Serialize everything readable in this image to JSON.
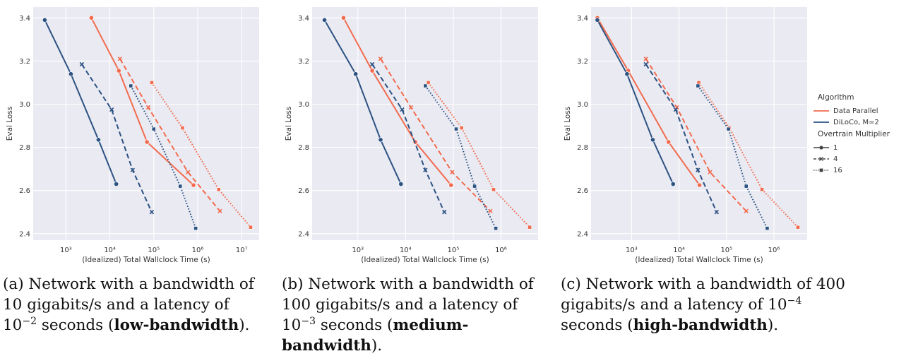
{
  "legend": {
    "title_algorithm": "Algorithm",
    "title_overtrain": "Overtrain Multiplier",
    "algorithms": [
      {
        "name": "Data Parallel",
        "color": "#f26b4e"
      },
      {
        "name": "DiLoCo, M=2",
        "color": "#2c5282"
      }
    ],
    "overtrain": [
      {
        "label": "1",
        "dash": "solid"
      },
      {
        "label": "4",
        "dash": "dashed"
      },
      {
        "label": "16",
        "dash": "dotted"
      }
    ]
  },
  "captions": [
    {
      "id": "a",
      "prefix": "(a) Network with a bandwidth of 10 gigabits/s and a latency of 10",
      "exp": "−2",
      "mid": " seconds (",
      "bold": "low-bandwidth",
      "suffix": ")."
    },
    {
      "id": "b",
      "prefix": "(b) Network with a bandwidth of 100 gigabits/s and a latency of 10",
      "exp": "−3",
      "mid": " seconds (",
      "bold": "medium-bandwidth",
      "suffix": ")."
    },
    {
      "id": "c",
      "prefix": "(c) Network with a bandwidth of 400 gigabits/s and a latency of 10",
      "exp": "−4",
      "mid": " seconds (",
      "bold": "high-bandwidth",
      "suffix": ")."
    }
  ],
  "chart_data": [
    {
      "type": "line",
      "xlabel": "(Idealized) Total Wallclock Time (s)",
      "ylabel": "Eval Loss",
      "xscale": "log",
      "xlim": [
        180,
        25000000
      ],
      "ylim": [
        2.37,
        3.45
      ],
      "xticks": [
        {
          "v": 1000,
          "label": "10^3"
        },
        {
          "v": 10000,
          "label": "10^4"
        },
        {
          "v": 100000,
          "label": "10^5"
        },
        {
          "v": 1000000,
          "label": "10^6"
        },
        {
          "v": 10000000,
          "label": "10^7"
        }
      ],
      "yticks": [
        2.4,
        2.6,
        2.8,
        3.0,
        3.2,
        3.4
      ],
      "grid": true,
      "series": [
        {
          "name": "Data Parallel",
          "overtrain": "1",
          "color": "#f26b4e",
          "dash": "solid",
          "x": [
            3800,
            16000,
            70000,
            800000
          ],
          "y": [
            3.4,
            3.155,
            2.825,
            2.625
          ]
        },
        {
          "name": "Data Parallel",
          "overtrain": "4",
          "color": "#f26b4e",
          "dash": "dashed",
          "x": [
            17000,
            75000,
            600000,
            3200000
          ],
          "y": [
            3.21,
            2.985,
            2.685,
            2.505
          ]
        },
        {
          "name": "Data Parallel",
          "overtrain": "16",
          "color": "#f26b4e",
          "dash": "dotted",
          "x": [
            90000,
            450000,
            3000000,
            16000000
          ],
          "y": [
            3.1,
            2.89,
            2.605,
            2.43
          ]
        },
        {
          "name": "DiLoCo, M=2",
          "overtrain": "1",
          "color": "#2c5282",
          "dash": "solid",
          "x": [
            330,
            1300,
            5500,
            14000
          ],
          "y": [
            3.39,
            3.14,
            2.835,
            2.63
          ]
        },
        {
          "name": "DiLoCo, M=2",
          "overtrain": "4",
          "color": "#2c5282",
          "dash": "dashed",
          "x": [
            2300,
            11000,
            33000,
            90000
          ],
          "y": [
            3.185,
            2.975,
            2.695,
            2.5
          ]
        },
        {
          "name": "DiLoCo, M=2",
          "overtrain": "16",
          "color": "#2c5282",
          "dash": "dotted",
          "x": [
            30000,
            100000,
            400000,
            900000
          ],
          "y": [
            3.085,
            2.885,
            2.62,
            2.425
          ]
        }
      ]
    },
    {
      "type": "line",
      "xlabel": "(Idealized) Total Wallclock Time (s)",
      "ylabel": "Eval Loss",
      "xscale": "log",
      "xlim": [
        110,
        6000000
      ],
      "ylim": [
        2.37,
        3.45
      ],
      "xticks": [
        {
          "v": 1000,
          "label": "10^3"
        },
        {
          "v": 10000,
          "label": "10^4"
        },
        {
          "v": 100000,
          "label": "10^5"
        },
        {
          "v": 1000000,
          "label": "10^6"
        }
      ],
      "yticks": [
        2.4,
        2.6,
        2.8,
        3.0,
        3.2,
        3.4
      ],
      "grid": true,
      "series": [
        {
          "name": "Data Parallel",
          "overtrain": "1",
          "color": "#f26b4e",
          "dash": "solid",
          "x": [
            500,
            2000,
            16000,
            90000
          ],
          "y": [
            3.4,
            3.155,
            2.825,
            2.625
          ]
        },
        {
          "name": "Data Parallel",
          "overtrain": "4",
          "color": "#f26b4e",
          "dash": "dashed",
          "x": [
            3000,
            13000,
            95000,
            600000
          ],
          "y": [
            3.21,
            2.985,
            2.685,
            2.505
          ]
        },
        {
          "name": "Data Parallel",
          "overtrain": "16",
          "color": "#f26b4e",
          "dash": "dotted",
          "x": [
            30000,
            150000,
            700000,
            4000000
          ],
          "y": [
            3.1,
            2.89,
            2.605,
            2.43
          ]
        },
        {
          "name": "DiLoCo, M=2",
          "overtrain": "1",
          "color": "#2c5282",
          "dash": "solid",
          "x": [
            200,
            900,
            3000,
            8000
          ],
          "y": [
            3.39,
            3.14,
            2.835,
            2.63
          ]
        },
        {
          "name": "DiLoCo, M=2",
          "overtrain": "4",
          "color": "#2c5282",
          "dash": "dashed",
          "x": [
            2000,
            8500,
            26000,
            65000
          ],
          "y": [
            3.185,
            2.975,
            2.695,
            2.5
          ]
        },
        {
          "name": "DiLoCo, M=2",
          "overtrain": "16",
          "color": "#2c5282",
          "dash": "dotted",
          "x": [
            26000,
            115000,
            280000,
            780000
          ],
          "y": [
            3.085,
            2.885,
            2.62,
            2.425
          ]
        }
      ]
    },
    {
      "type": "line",
      "xlabel": "(Idealized) Total Wallclock Time (s)",
      "ylabel": "Eval Loss",
      "xscale": "log",
      "xlim": [
        140,
        5000000
      ],
      "ylim": [
        2.37,
        3.45
      ],
      "xticks": [
        {
          "v": 1000,
          "label": "10^3"
        },
        {
          "v": 10000,
          "label": "10^4"
        },
        {
          "v": 100000,
          "label": "10^5"
        },
        {
          "v": 1000000,
          "label": "10^6"
        }
      ],
      "yticks": [
        2.4,
        2.6,
        2.8,
        3.0,
        3.2,
        3.4
      ],
      "grid": true,
      "series": [
        {
          "name": "Data Parallel",
          "overtrain": "1",
          "color": "#f26b4e",
          "dash": "solid",
          "x": [
            190,
            850,
            6000,
            27000
          ],
          "y": [
            3.4,
            3.155,
            2.825,
            2.625
          ]
        },
        {
          "name": "Data Parallel",
          "overtrain": "4",
          "color": "#f26b4e",
          "dash": "dashed",
          "x": [
            2000,
            9000,
            45000,
            260000
          ],
          "y": [
            3.21,
            2.985,
            2.685,
            2.505
          ]
        },
        {
          "name": "Data Parallel",
          "overtrain": "16",
          "color": "#f26b4e",
          "dash": "dotted",
          "x": [
            26000,
            115000,
            560000,
            3200000
          ],
          "y": [
            3.1,
            2.89,
            2.605,
            2.43
          ]
        },
        {
          "name": "DiLoCo, M=2",
          "overtrain": "1",
          "color": "#2c5282",
          "dash": "solid",
          "x": [
            190,
            800,
            2800,
            7500
          ],
          "y": [
            3.39,
            3.14,
            2.835,
            2.63
          ]
        },
        {
          "name": "DiLoCo, M=2",
          "overtrain": "4",
          "color": "#2c5282",
          "dash": "dashed",
          "x": [
            2000,
            8500,
            25000,
            62000
          ],
          "y": [
            3.185,
            2.975,
            2.695,
            2.5
          ]
        },
        {
          "name": "DiLoCo, M=2",
          "overtrain": "16",
          "color": "#2c5282",
          "dash": "dotted",
          "x": [
            25000,
            110000,
            260000,
            720000
          ],
          "y": [
            3.085,
            2.885,
            2.62,
            2.425
          ]
        }
      ]
    }
  ]
}
